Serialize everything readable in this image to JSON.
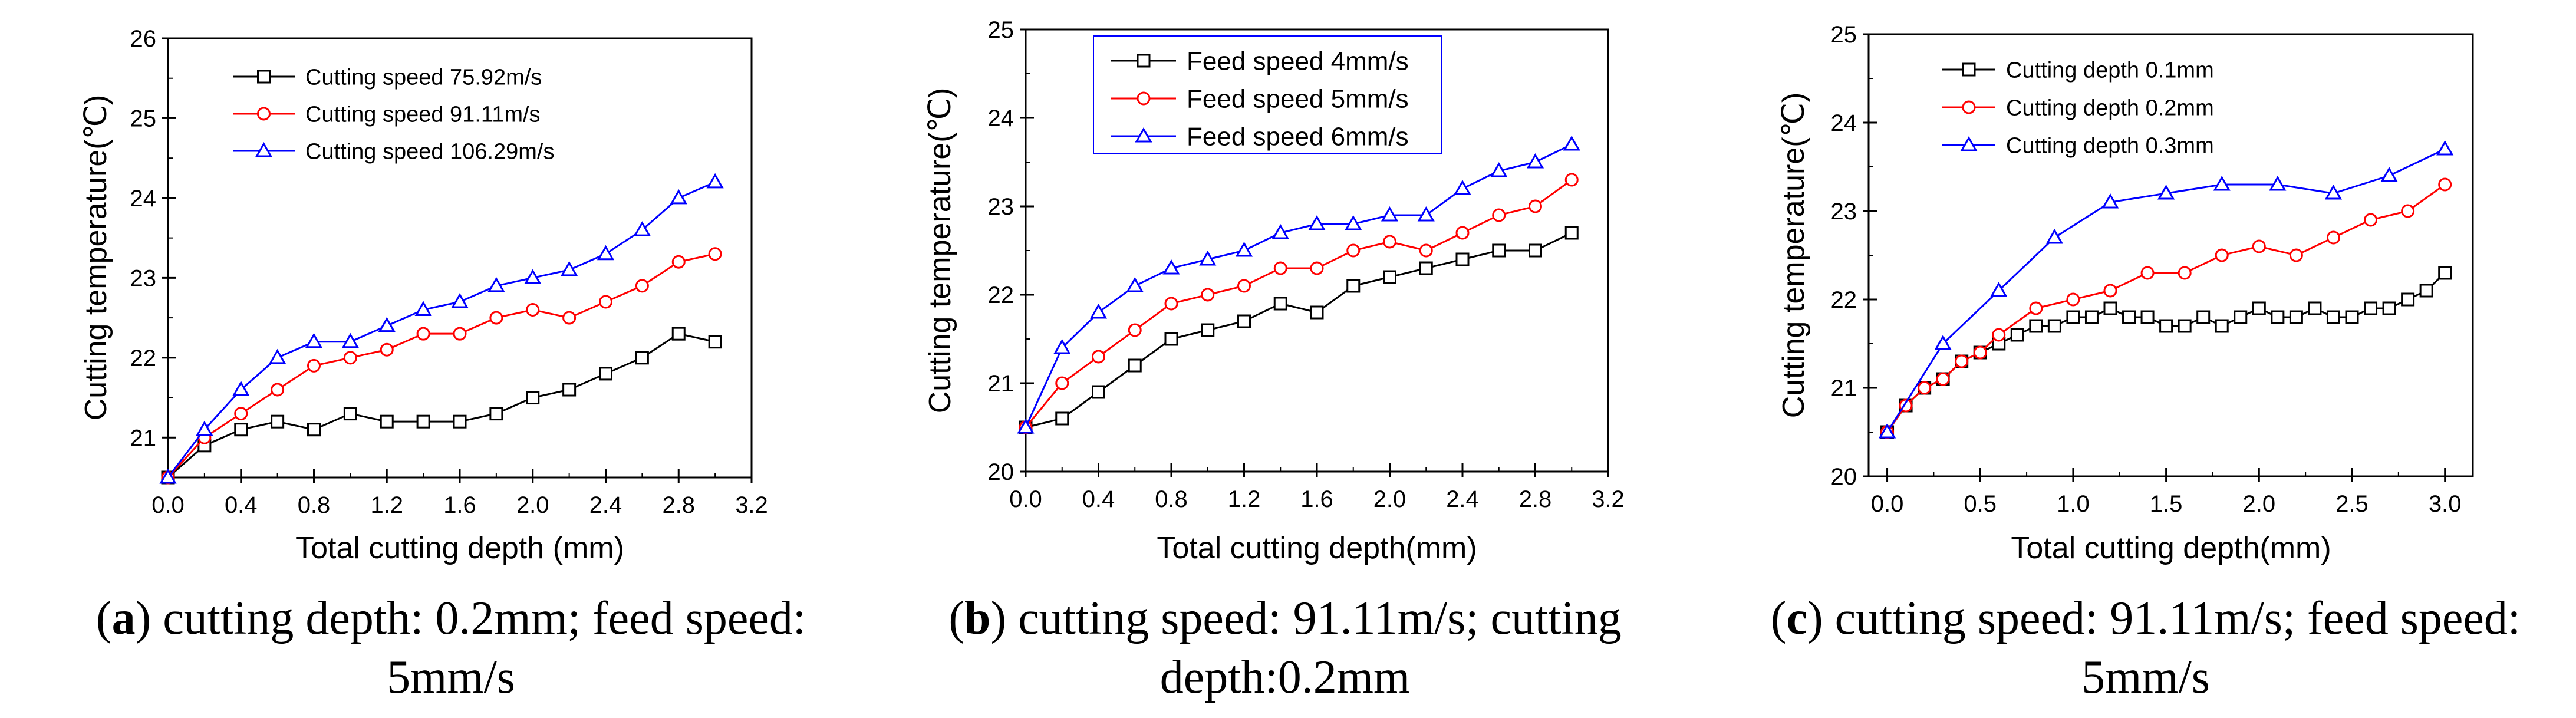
{
  "chart_data": [
    {
      "type": "line",
      "xlabel": "Total cutting depth (mm)",
      "ylabel": "Cutting temperature(℃)",
      "xlim": [
        0.0,
        3.2
      ],
      "ylim": [
        20.5,
        26
      ],
      "xticks": [
        0.0,
        0.4,
        0.8,
        1.2,
        1.6,
        2.0,
        2.4,
        2.8,
        3.2
      ],
      "xtick_labels": [
        "0.0",
        "0.4",
        "0.8",
        "1.2",
        "1.6",
        "2.0",
        "2.4",
        "2.8",
        "3.2"
      ],
      "yticks": [
        21,
        22,
        23,
        24,
        25,
        26
      ],
      "ytick_labels": [
        "21",
        "22",
        "23",
        "24",
        "25",
        "26"
      ],
      "legend_position": "top-left",
      "series": [
        {
          "name": "Cutting speed 75.92m/s",
          "color": "#000000",
          "marker": "square",
          "x": [
            0.0,
            0.2,
            0.4,
            0.6,
            0.8,
            1.0,
            1.2,
            1.4,
            1.6,
            1.8,
            2.0,
            2.2,
            2.4,
            2.6,
            2.8,
            3.0
          ],
          "y": [
            20.5,
            20.9,
            21.1,
            21.2,
            21.1,
            21.3,
            21.2,
            21.2,
            21.2,
            21.3,
            21.5,
            21.6,
            21.8,
            22.0,
            22.3,
            22.2
          ]
        },
        {
          "name": "Cutting speed 91.11m/s",
          "color": "#ff0000",
          "marker": "circle",
          "x": [
            0.0,
            0.2,
            0.4,
            0.6,
            0.8,
            1.0,
            1.2,
            1.4,
            1.6,
            1.8,
            2.0,
            2.2,
            2.4,
            2.6,
            2.8,
            3.0
          ],
          "y": [
            20.5,
            21.0,
            21.3,
            21.6,
            21.9,
            22.0,
            22.1,
            22.3,
            22.3,
            22.5,
            22.6,
            22.5,
            22.7,
            22.9,
            23.2,
            23.3
          ]
        },
        {
          "name": "Cutting speed 106.29m/s",
          "color": "#0000ff",
          "marker": "triangle",
          "x": [
            0.0,
            0.2,
            0.4,
            0.6,
            0.8,
            1.0,
            1.2,
            1.4,
            1.6,
            1.8,
            2.0,
            2.2,
            2.4,
            2.6,
            2.8,
            3.0
          ],
          "y": [
            20.5,
            21.1,
            21.6,
            22.0,
            22.2,
            22.2,
            22.4,
            22.6,
            22.7,
            22.9,
            23.0,
            23.1,
            23.3,
            23.6,
            24.0,
            24.2
          ]
        }
      ]
    },
    {
      "type": "line",
      "xlabel": "Total cutting depth(mm)",
      "ylabel": "Cutting temperature(℃)",
      "xlim": [
        0.0,
        3.2
      ],
      "ylim": [
        20,
        25
      ],
      "xticks": [
        0.0,
        0.4,
        0.8,
        1.2,
        1.6,
        2.0,
        2.4,
        2.8,
        3.2
      ],
      "xtick_labels": [
        "0.0",
        "0.4",
        "0.8",
        "1.2",
        "1.6",
        "2.0",
        "2.4",
        "2.8",
        "3.2"
      ],
      "yticks": [
        20,
        21,
        22,
        23,
        24,
        25
      ],
      "ytick_labels": [
        "20",
        "21",
        "22",
        "23",
        "24",
        "25"
      ],
      "legend_position": "top-left",
      "series": [
        {
          "name": "Feed speed 4mm/s",
          "color": "#000000",
          "marker": "square",
          "x": [
            0.0,
            0.2,
            0.4,
            0.6,
            0.8,
            1.0,
            1.2,
            1.4,
            1.6,
            1.8,
            2.0,
            2.2,
            2.4,
            2.6,
            2.8,
            3.0
          ],
          "y": [
            20.5,
            20.6,
            20.9,
            21.2,
            21.5,
            21.6,
            21.7,
            21.9,
            21.8,
            22.1,
            22.2,
            22.3,
            22.4,
            22.5,
            22.5,
            22.7
          ]
        },
        {
          "name": "Feed speed 5mm/s",
          "color": "#ff0000",
          "marker": "circle",
          "x": [
            0.0,
            0.2,
            0.4,
            0.6,
            0.8,
            1.0,
            1.2,
            1.4,
            1.6,
            1.8,
            2.0,
            2.2,
            2.4,
            2.6,
            2.8,
            3.0
          ],
          "y": [
            20.5,
            21.0,
            21.3,
            21.6,
            21.9,
            22.0,
            22.1,
            22.3,
            22.3,
            22.5,
            22.6,
            22.5,
            22.7,
            22.9,
            23.0,
            23.3
          ]
        },
        {
          "name": "Feed speed 6mm/s",
          "color": "#0000ff",
          "marker": "triangle",
          "x": [
            0.0,
            0.2,
            0.4,
            0.6,
            0.8,
            1.0,
            1.2,
            1.4,
            1.6,
            1.8,
            2.0,
            2.2,
            2.4,
            2.6,
            2.8,
            3.0
          ],
          "y": [
            20.5,
            21.4,
            21.8,
            22.1,
            22.3,
            22.4,
            22.5,
            22.7,
            22.8,
            22.8,
            22.9,
            22.9,
            23.2,
            23.4,
            23.5,
            23.7
          ]
        }
      ]
    },
    {
      "type": "line",
      "xlabel": "Total cutting depth(mm)",
      "ylabel": "Cutting temperature(℃)",
      "xlim": [
        -0.1,
        3.15
      ],
      "ylim": [
        20,
        25
      ],
      "xticks": [
        0.0,
        0.5,
        1.0,
        1.5,
        2.0,
        2.5,
        3.0
      ],
      "xtick_labels": [
        "0.0",
        "0.5",
        "1.0",
        "1.5",
        "2.0",
        "2.5",
        "3.0"
      ],
      "yticks": [
        20,
        21,
        22,
        23,
        24,
        25
      ],
      "ytick_labels": [
        "20",
        "21",
        "22",
        "23",
        "24",
        "25"
      ],
      "legend_position": "top-left",
      "series": [
        {
          "name": "Cutting depth 0.1mm",
          "color": "#000000",
          "marker": "square",
          "x": [
            0.0,
            0.1,
            0.2,
            0.3,
            0.4,
            0.5,
            0.6,
            0.7,
            0.8,
            0.9,
            1.0,
            1.1,
            1.2,
            1.3,
            1.4,
            1.5,
            1.6,
            1.7,
            1.8,
            1.9,
            2.0,
            2.1,
            2.2,
            2.3,
            2.4,
            2.5,
            2.6,
            2.7,
            2.8,
            2.9,
            3.0
          ],
          "y": [
            20.5,
            20.8,
            21.0,
            21.1,
            21.3,
            21.4,
            21.5,
            21.6,
            21.7,
            21.7,
            21.8,
            21.8,
            21.9,
            21.8,
            21.8,
            21.7,
            21.7,
            21.8,
            21.7,
            21.8,
            21.9,
            21.8,
            21.8,
            21.9,
            21.8,
            21.8,
            21.9,
            21.9,
            22.0,
            22.1,
            22.3
          ]
        },
        {
          "name": "Cutting depth 0.2mm",
          "color": "#ff0000",
          "marker": "circle",
          "x": [
            0.0,
            0.1,
            0.2,
            0.3,
            0.4,
            0.5,
            0.6,
            0.8,
            1.0,
            1.2,
            1.4,
            1.6,
            1.8,
            2.0,
            2.2,
            2.4,
            2.6,
            2.8,
            3.0
          ],
          "y": [
            20.5,
            20.8,
            21.0,
            21.1,
            21.3,
            21.4,
            21.6,
            21.9,
            22.0,
            22.1,
            22.3,
            22.3,
            22.5,
            22.6,
            22.5,
            22.7,
            22.9,
            23.0,
            23.3
          ]
        },
        {
          "name": "Cutting depth 0.3mm",
          "color": "#0000ff",
          "marker": "triangle",
          "x": [
            0.0,
            0.3,
            0.6,
            0.9,
            1.2,
            1.5,
            1.8,
            2.1,
            2.4,
            2.7,
            3.0
          ],
          "y": [
            20.5,
            21.5,
            22.1,
            22.7,
            23.1,
            23.2,
            23.3,
            23.3,
            23.2,
            23.4,
            23.7
          ]
        }
      ]
    }
  ],
  "captions": [
    {
      "letter": "a",
      "line1": ") cutting depth: 0.2mm; feed speed:",
      "line2": "5mm/s"
    },
    {
      "letter": "b",
      "line1": ") cutting speed: 91.11m/s; cutting",
      "line2": "depth:0.2mm"
    },
    {
      "letter": "c",
      "line1": ") cutting speed: 91.11m/s; feed speed:",
      "line2": "5mm/s"
    }
  ]
}
